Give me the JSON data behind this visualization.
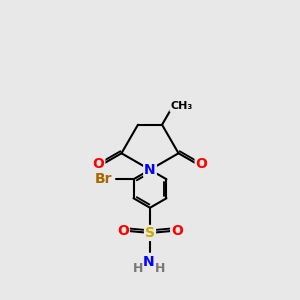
{
  "bg_color": "#e8e8e8",
  "atom_colors": {
    "C": "#000000",
    "N": "#0000ff",
    "O": "#ff0000",
    "S": "#ccaa00",
    "Br": "#aa6600",
    "H": "#777777"
  },
  "bond_color": "#000000",
  "bond_width": 1.5,
  "figsize": [
    3.0,
    3.0
  ],
  "dpi": 100,
  "xlim": [
    0.5,
    6.5
  ],
  "ylim": [
    0.2,
    7.8
  ]
}
